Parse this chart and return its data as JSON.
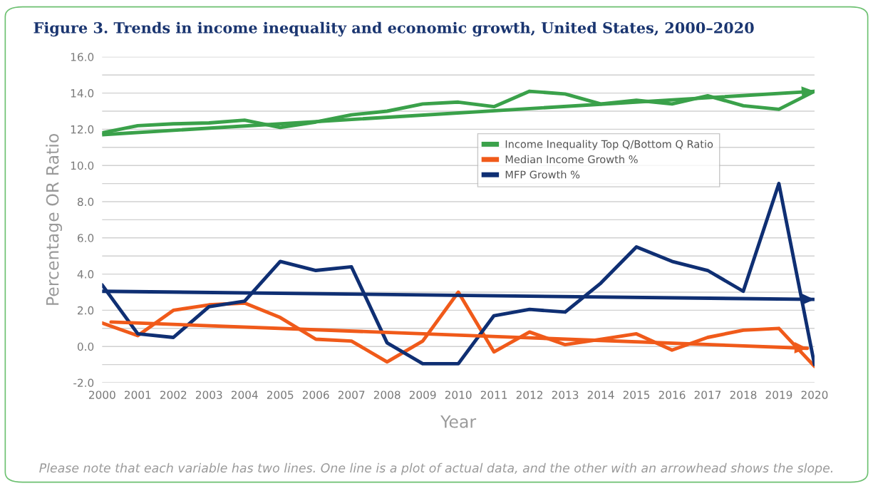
{
  "chart_data": {
    "type": "line",
    "title": "Figure 3. Trends in income inequality and economic growth, United States, 2000–2020",
    "xlabel": "Year",
    "ylabel": "Percentage OR Ratio",
    "x": [
      2000,
      2001,
      2002,
      2003,
      2004,
      2005,
      2006,
      2007,
      2008,
      2009,
      2010,
      2011,
      2012,
      2013,
      2014,
      2015,
      2016,
      2017,
      2018,
      2019,
      2020
    ],
    "series": [
      {
        "name": "Income Inequality Top Q/Bottom Q Ratio",
        "color": "#3aa14a",
        "values": [
          11.8,
          12.2,
          12.3,
          12.35,
          12.5,
          12.1,
          12.4,
          12.8,
          13.0,
          13.4,
          13.5,
          13.25,
          14.1,
          13.95,
          13.4,
          13.6,
          13.4,
          13.85,
          13.3,
          13.1,
          14.1
        ]
      },
      {
        "name": "Median Income Growth %",
        "color": "#f05a1a",
        "values": [
          1.3,
          0.6,
          2.0,
          2.3,
          2.4,
          1.6,
          0.4,
          0.3,
          -0.85,
          0.3,
          3.0,
          -0.3,
          0.8,
          0.1,
          0.4,
          0.7,
          -0.2,
          0.5,
          0.9,
          1.0,
          -1.1
        ]
      },
      {
        "name": "MFP Growth %",
        "color": "#0f2f73",
        "values": [
          3.4,
          0.7,
          0.5,
          2.2,
          2.5,
          4.7,
          4.2,
          4.4,
          0.2,
          -0.95,
          -0.95,
          1.7,
          2.05,
          1.9,
          3.5,
          5.5,
          4.7,
          4.2,
          3.05,
          9.0,
          -1.0
        ]
      },
      {
        "type": "line",
        "color": "#3aa14a",
        "x": [
          2000,
          2020
        ],
        "values": [
          11.7,
          14.1
        ]
      },
      {
        "type": "line",
        "color": "#f05a1a",
        "x": [
          2000.25,
          2019.8
        ],
        "values": [
          1.35,
          -0.1
        ]
      },
      {
        "type": "line",
        "color": "#0f2f73",
        "x": [
          2000,
          2020
        ],
        "values": [
          3.05,
          2.6
        ]
      }
    ],
    "xlim": [
      2000,
      2020
    ],
    "xticks": [
      2000,
      2001,
      2002,
      2003,
      2004,
      2005,
      2006,
      2007,
      2008,
      2009,
      2010,
      2011,
      2012,
      2013,
      2014,
      2015,
      2016,
      2017,
      2018,
      2019,
      2020
    ],
    "ylim": [
      -2,
      16
    ],
    "yticks": [
      {
        "value": -2,
        "label": "-2.0"
      },
      {
        "value": -1,
        "label": null
      },
      {
        "value": 0,
        "label": "0.0"
      },
      {
        "value": 1,
        "label": null
      },
      {
        "value": 2,
        "label": "2.0"
      },
      {
        "value": 3,
        "label": null
      },
      {
        "value": 4,
        "label": "4.0"
      },
      {
        "value": 5,
        "label": null
      },
      {
        "value": 6,
        "label": "6.0"
      },
      {
        "value": 7,
        "label": null
      },
      {
        "value": 8,
        "label": "8.0"
      },
      {
        "value": 9,
        "label": null
      },
      {
        "value": 10,
        "label": "10.0"
      },
      {
        "value": 11,
        "label": null
      },
      {
        "value": 12,
        "label": "12.0"
      },
      {
        "value": 13,
        "label": null
      },
      {
        "value": 14,
        "label": "14.0"
      },
      {
        "value": 15,
        "label": null
      },
      {
        "value": 16,
        "label": "16.0"
      }
    ],
    "grid": "y",
    "legend": "top right",
    "marker": "none",
    "line_style": "solid",
    "annotations": [
      "Please note that each variable has two lines. One line is a plot of actual data, and the other with an arrowhead shows the slope."
    ]
  }
}
